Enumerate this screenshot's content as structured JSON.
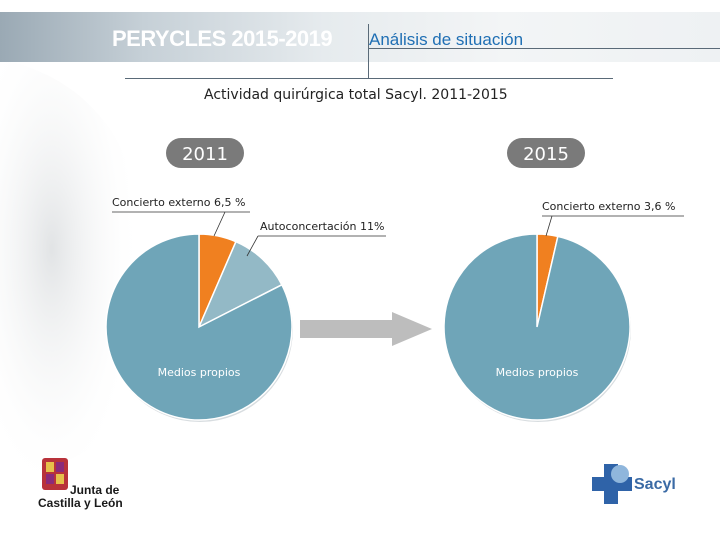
{
  "header": {
    "brand": "PERYCLES 2015-2019",
    "section": "Análisis de situación"
  },
  "subtitle": "Actividad quirúrgica total Sacyl. 2011-2015",
  "logos": {
    "left_line1": "Junta de",
    "left_line2": "Castilla y León",
    "right": "Sacyl"
  },
  "colors": {
    "medios": "#6fa5b8",
    "concierto": "#f08020",
    "autoconcertacion": "#93b9c6",
    "badge": "#7a7a7a"
  },
  "chart_data": [
    {
      "type": "pie",
      "title": "2011",
      "slices": [
        {
          "label": "Concierto externo 6,5 %",
          "value": 6.5
        },
        {
          "label": "Autoconcertación 11%",
          "value": 11
        },
        {
          "label": "Medios propios",
          "value": 82.5
        }
      ]
    },
    {
      "type": "pie",
      "title": "2015",
      "slices": [
        {
          "label": "Concierto externo 3,6 %",
          "value": 3.6
        },
        {
          "label": "Medios propios",
          "value": 96.4
        }
      ]
    }
  ]
}
